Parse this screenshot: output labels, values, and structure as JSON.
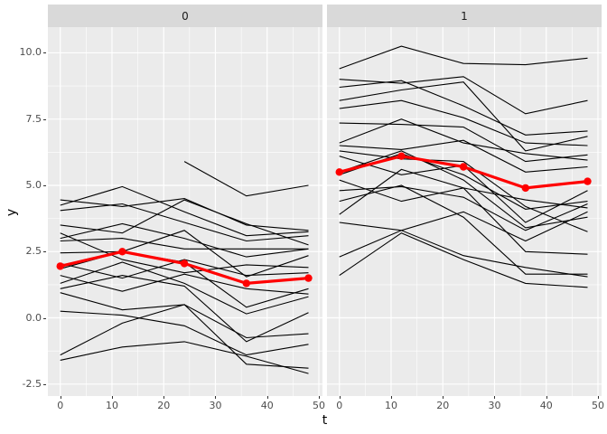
{
  "chart_data": {
    "type": "line",
    "title": "",
    "xlabel": "t",
    "ylabel": "y",
    "x": [
      0,
      12,
      24,
      36,
      48
    ],
    "x_tick_values": [
      0,
      10,
      20,
      30,
      40,
      50
    ],
    "x_tick_labels": [
      "0",
      "10",
      "20",
      "30",
      "40",
      "50"
    ],
    "y_tick_values": [
      10.0,
      7.5,
      5.0,
      2.5,
      0.0,
      -2.5
    ],
    "y_tick_labels": [
      "10.0",
      "7.5",
      "5.0",
      "2.5",
      "0.0",
      "-2.5"
    ],
    "x_minor_values": [
      5,
      15,
      25,
      35,
      45
    ],
    "y_minor_values": [
      8.75,
      6.25,
      3.75,
      1.25,
      -1.25
    ],
    "xlim": [
      -2.4,
      50.7
    ],
    "ylim": [
      -2.95,
      10.97
    ],
    "grid": "on",
    "legend": "none",
    "facets": [
      {
        "label": "0",
        "mean_series": {
          "name": "group-mean",
          "values": [
            1.95,
            2.5,
            2.05,
            1.3,
            1.5
          ]
        },
        "subject_series": [
          [
            4.45,
            4.2,
            4.5,
            3.5,
            3.3
          ],
          [
            4.25,
            4.95,
            4.0,
            3.1,
            3.25
          ],
          [
            4.05,
            4.3,
            3.6,
            2.9,
            3.1
          ],
          [
            3.5,
            3.2,
            4.45,
            3.55,
            2.75
          ],
          [
            3.0,
            3.55,
            3.0,
            2.3,
            2.6
          ],
          [
            2.45,
            2.5,
            3.3,
            1.55,
            2.35
          ],
          [
            2.05,
            1.5,
            2.2,
            1.6,
            1.7
          ],
          [
            1.85,
            2.5,
            2.1,
            0.4,
            1.1
          ],
          [
            1.6,
            1.0,
            1.65,
            1.1,
            0.9
          ],
          [
            1.3,
            2.1,
            1.3,
            0.15,
            0.8
          ],
          [
            0.95,
            0.3,
            0.5,
            -0.75,
            -0.6
          ],
          [
            0.25,
            0.1,
            -0.3,
            -1.4,
            -1.0
          ],
          [
            -1.4,
            -0.2,
            0.5,
            -1.75,
            -1.9
          ],
          [
            -1.6,
            -1.1,
            -0.9,
            -1.45,
            -2.1
          ],
          [
            2.9,
            3.0,
            2.6,
            2.6,
            2.6
          ],
          [
            3.2,
            2.2,
            1.7,
            2.0,
            1.9
          ],
          [
            1.1,
            1.6,
            1.2,
            -0.9,
            0.2
          ],
          [
            null,
            null,
            5.9,
            4.6,
            5.0
          ]
        ]
      },
      {
        "label": "1",
        "mean_series": {
          "name": "group-mean",
          "values": [
            5.5,
            6.1,
            5.7,
            4.9,
            5.15
          ]
        },
        "subject_series": [
          [
            9.4,
            10.25,
            9.6,
            9.55,
            9.8
          ],
          [
            9.0,
            8.85,
            9.1,
            7.7,
            8.2
          ],
          [
            8.7,
            8.95,
            8.0,
            6.9,
            7.05
          ],
          [
            8.2,
            8.6,
            8.9,
            6.3,
            6.85
          ],
          [
            7.9,
            8.2,
            7.55,
            6.6,
            6.5
          ],
          [
            7.35,
            7.3,
            7.2,
            5.9,
            6.15
          ],
          [
            6.6,
            7.5,
            6.6,
            6.2,
            5.95
          ],
          [
            6.5,
            6.35,
            6.7,
            5.5,
            5.7
          ],
          [
            6.1,
            5.4,
            5.75,
            3.6,
            4.8
          ],
          [
            5.4,
            6.2,
            5.4,
            4.1,
            4.4
          ],
          [
            4.8,
            4.95,
            4.55,
            3.3,
            4.3
          ],
          [
            3.9,
            5.6,
            4.9,
            4.45,
            4.15
          ],
          [
            3.6,
            3.3,
            4.0,
            2.9,
            4.0
          ],
          [
            5.5,
            6.3,
            5.2,
            3.4,
            3.8
          ],
          [
            6.3,
            6.0,
            5.9,
            4.2,
            3.25
          ],
          [
            5.2,
            4.4,
            4.9,
            2.5,
            2.4
          ],
          [
            4.4,
            5.0,
            3.8,
            1.65,
            1.65
          ],
          [
            2.3,
            3.3,
            2.35,
            1.9,
            1.55
          ],
          [
            1.6,
            3.2,
            2.2,
            1.3,
            1.15
          ]
        ]
      }
    ],
    "colors": {
      "panel_background": "#EBEBEB",
      "strip_background": "#D9D9D9",
      "grid": "#FFFFFF",
      "subject_line": "#000000",
      "mean_line": "#FF0000",
      "axis_text": "#4D4D4D",
      "tick_mark": "#333333"
    }
  },
  "layout_note": "faceted spaghetti plot, facet strips labeled 0 and 1"
}
